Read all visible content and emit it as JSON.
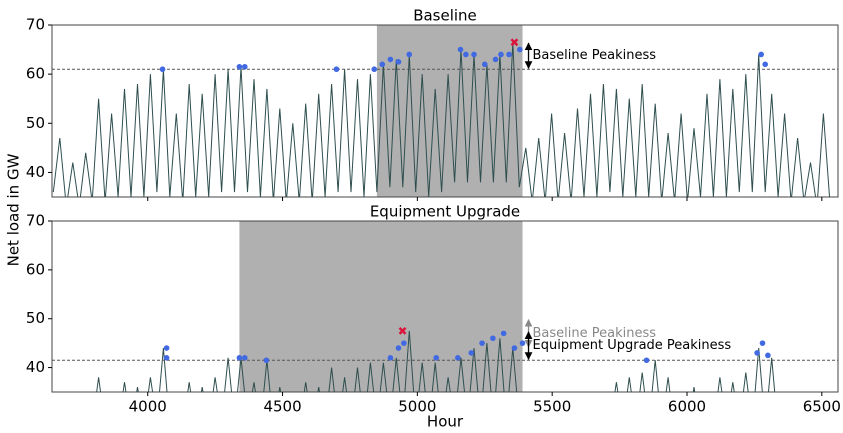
{
  "ylabel": "Net load in GW",
  "xlabel": "Hour",
  "chart_data": [
    {
      "type": "line",
      "title": "Baseline",
      "color": "#2f4f4f",
      "xlim": [
        3645,
        6560
      ],
      "ylim": [
        35,
        70
      ],
      "xticks": [
        4000,
        4500,
        5000,
        5500,
        6000,
        6500
      ],
      "yticks": [
        40,
        50,
        60,
        70
      ],
      "shade": [
        4850,
        5390
      ],
      "hline": 61,
      "x": [
        3650,
        3674,
        3698,
        3722,
        3746,
        3770,
        3794,
        3818,
        3842,
        3866,
        3890,
        3914,
        3938,
        3962,
        3986,
        4010,
        4034,
        4058,
        4082,
        4106,
        4130,
        4154,
        4178,
        4202,
        4226,
        4250,
        4274,
        4298,
        4322,
        4346,
        4370,
        4394,
        4418,
        4442,
        4466,
        4490,
        4514,
        4538,
        4562,
        4586,
        4610,
        4634,
        4658,
        4682,
        4706,
        4730,
        4754,
        4778,
        4802,
        4826,
        4850,
        4874,
        4898,
        4922,
        4946,
        4970,
        4994,
        5018,
        5042,
        5066,
        5090,
        5114,
        5138,
        5162,
        5186,
        5210,
        5234,
        5258,
        5282,
        5306,
        5330,
        5354,
        5378,
        5402,
        5426,
        5450,
        5474,
        5498,
        5522,
        5546,
        5570,
        5594,
        5618,
        5642,
        5666,
        5690,
        5714,
        5738,
        5762,
        5786,
        5810,
        5834,
        5858,
        5882,
        5906,
        5930,
        5954,
        5978,
        6002,
        6026,
        6050,
        6074,
        6098,
        6122,
        6146,
        6170,
        6194,
        6218,
        6242,
        6266,
        6290,
        6314,
        6338,
        6362,
        6386,
        6410,
        6434,
        6458,
        6482,
        6506,
        6530
      ],
      "values": [
        36,
        47,
        33,
        42,
        33,
        44,
        34,
        55,
        34,
        52,
        35,
        57,
        35,
        58,
        35,
        60,
        36,
        61,
        35,
        52,
        34,
        58,
        35,
        56,
        35,
        60,
        36,
        61,
        36,
        61.5,
        36,
        59,
        35,
        57,
        34,
        53,
        34,
        50,
        34,
        54,
        34,
        56,
        35,
        58,
        36,
        61,
        36,
        59,
        35,
        60,
        36,
        62,
        37,
        63,
        37,
        64,
        36,
        60,
        35,
        57,
        36,
        60,
        38,
        65,
        38,
        64,
        38,
        62,
        38,
        64,
        38,
        66.5,
        37,
        45,
        34,
        47,
        34,
        52,
        34,
        48,
        34,
        53,
        35,
        56,
        35,
        58,
        36,
        57,
        35,
        55,
        35,
        58,
        35,
        54,
        34,
        48,
        34,
        52,
        34,
        49,
        35,
        56,
        35,
        59,
        35,
        57,
        36,
        60,
        36,
        64,
        36,
        56,
        35,
        52,
        34,
        47,
        34,
        42,
        33,
        52,
        34
      ],
      "markers": {
        "color": "#4169e1",
        "x": [
          4055,
          4340,
          4360,
          4700,
          4840,
          4870,
          4900,
          4930,
          4970,
          5160,
          5180,
          5210,
          5250,
          5290,
          5310,
          5340,
          5380,
          6275,
          6290
        ],
        "values": [
          61,
          61.5,
          61.5,
          61,
          61,
          62,
          63,
          62.5,
          64,
          65,
          64,
          64,
          62,
          63,
          64,
          64,
          65,
          64,
          62
        ]
      },
      "max_marker": {
        "color": "#dc143c",
        "x": 5360,
        "value": 66.5
      },
      "annotations": [
        {
          "text": "Baseline Peakiness",
          "x": 5390,
          "from": 61,
          "to": 66.5,
          "color": "#000000"
        }
      ]
    },
    {
      "type": "line",
      "title": "Equipment Upgrade",
      "color": "#2f4f4f",
      "xlim": [
        3645,
        6560
      ],
      "ylim": [
        35,
        70
      ],
      "xticks": [
        4000,
        4500,
        5000,
        5500,
        6000,
        6500
      ],
      "yticks": [
        40,
        50,
        60,
        70
      ],
      "shade": [
        4340,
        5390
      ],
      "hline": 41.5,
      "x": [
        3650,
        3674,
        3698,
        3722,
        3746,
        3770,
        3794,
        3818,
        3842,
        3866,
        3890,
        3914,
        3938,
        3962,
        3986,
        4010,
        4034,
        4058,
        4082,
        4106,
        4130,
        4154,
        4178,
        4202,
        4226,
        4250,
        4274,
        4298,
        4322,
        4346,
        4370,
        4394,
        4418,
        4442,
        4466,
        4490,
        4514,
        4538,
        4562,
        4586,
        4610,
        4634,
        4658,
        4682,
        4706,
        4730,
        4754,
        4778,
        4802,
        4826,
        4850,
        4874,
        4898,
        4922,
        4946,
        4970,
        4994,
        5018,
        5042,
        5066,
        5090,
        5114,
        5138,
        5162,
        5186,
        5210,
        5234,
        5258,
        5282,
        5306,
        5330,
        5354,
        5378,
        5402,
        5426,
        5450,
        5474,
        5498,
        5522,
        5546,
        5570,
        5594,
        5618,
        5642,
        5666,
        5690,
        5714,
        5738,
        5762,
        5786,
        5810,
        5834,
        5858,
        5882,
        5906,
        5930,
        5954,
        5978,
        6002,
        6026,
        6050,
        6074,
        6098,
        6122,
        6146,
        6170,
        6194,
        6218,
        6242,
        6266,
        6290,
        6314,
        6338,
        6362,
        6386,
        6410,
        6434,
        6458,
        6482,
        6506,
        6530
      ],
      "values": [
        28,
        32,
        27,
        30,
        27,
        33,
        28,
        38,
        28,
        35,
        28,
        37,
        28,
        36,
        28,
        38,
        29,
        44,
        28,
        34,
        28,
        37,
        28,
        36,
        28,
        38,
        29,
        42,
        29,
        42,
        29,
        37,
        28,
        41.5,
        28,
        36,
        28,
        35,
        28,
        37,
        28,
        36,
        28,
        40,
        28,
        38,
        28,
        40,
        28,
        41,
        29,
        41,
        29,
        42,
        29,
        47.5,
        29,
        41,
        28,
        41,
        28,
        38,
        29,
        42,
        29,
        44,
        29,
        45,
        29,
        46,
        29,
        44,
        29,
        33,
        27,
        31,
        27,
        32,
        27,
        30,
        27,
        33,
        27,
        32,
        27,
        35,
        28,
        37,
        28,
        38,
        28,
        39,
        28,
        41.5,
        28,
        38,
        27,
        34,
        27,
        36,
        27,
        35,
        28,
        38,
        28,
        37,
        28,
        39,
        28,
        44,
        28,
        42,
        27,
        35,
        27,
        33,
        27,
        31,
        27,
        32,
        27
      ],
      "markers": {
        "color": "#4169e1",
        "x": [
          4070,
          4070,
          4340,
          4360,
          4440,
          4900,
          4930,
          4950,
          5070,
          5150,
          5200,
          5240,
          5280,
          5320,
          5360,
          5390,
          5850,
          6260,
          6280,
          6300
        ],
        "values": [
          44,
          42,
          42,
          42,
          41.5,
          42,
          44,
          45,
          42,
          42,
          43,
          45,
          46,
          47,
          44,
          45,
          41.5,
          43,
          45,
          42.5
        ]
      },
      "max_marker": {
        "color": "#dc143c",
        "x": 4945,
        "value": 47.5
      },
      "annotations": [
        {
          "text": "Baseline Peakiness",
          "x": 5390,
          "from": 44,
          "to": 50,
          "color": "#888888"
        },
        {
          "text": "Equipment Upgrade Peakiness",
          "x": 5390,
          "from": 41.5,
          "to": 47.5,
          "color": "#000000"
        }
      ]
    }
  ]
}
